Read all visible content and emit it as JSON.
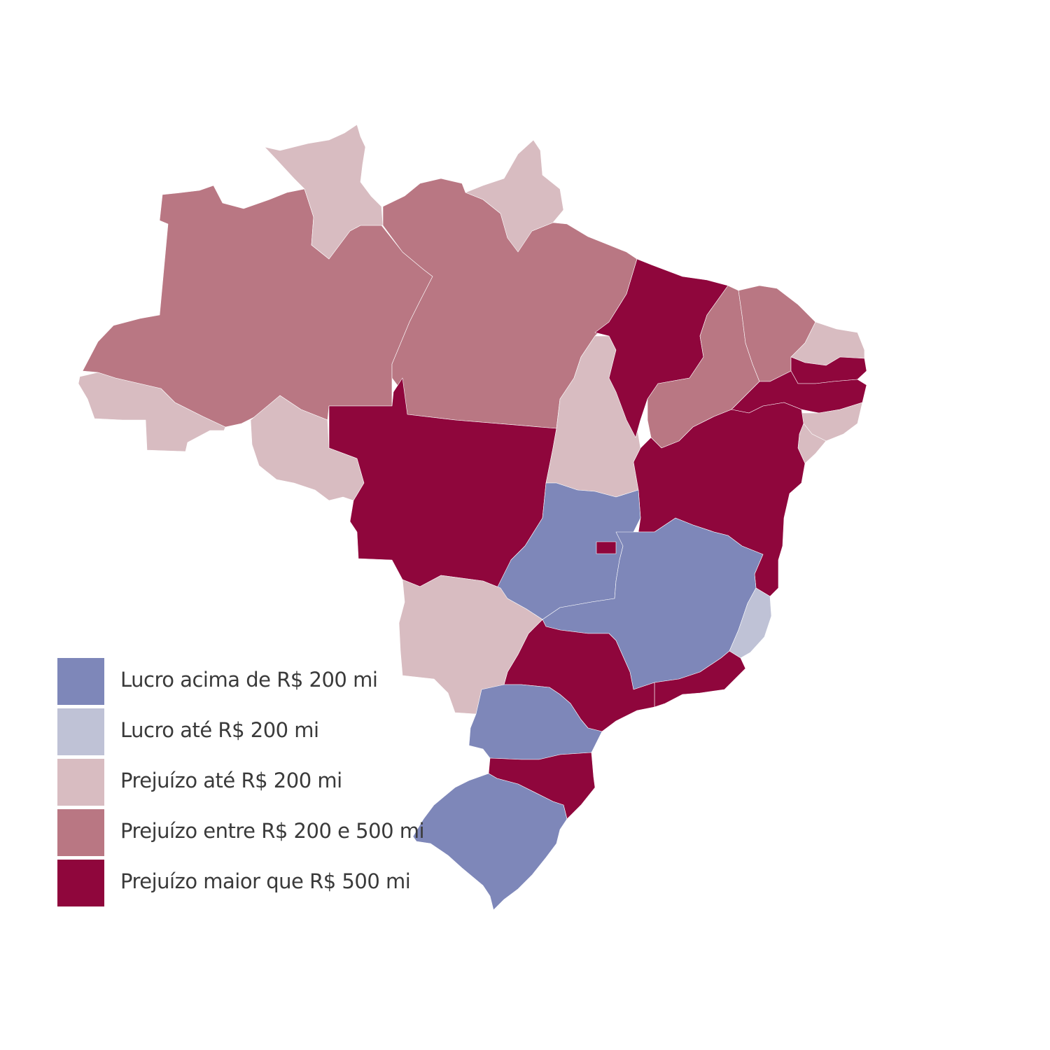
{
  "palette": {
    "lucro_acima": "#7e87b9",
    "lucro_ate": "#bfc2d6",
    "prejuizo_ate": "#d8bcc1",
    "prejuizo_entre": "#b97783",
    "prejuizo_maior": "#8f063c"
  },
  "legend": [
    {
      "key": "lucro_acima",
      "label": "Lucro acima de R$ 200 mi"
    },
    {
      "key": "lucro_ate",
      "label": "Lucro até R$ 200 mi"
    },
    {
      "key": "prejuizo_ate",
      "label": "Prejuízo até R$ 200 mi"
    },
    {
      "key": "prejuizo_entre",
      "label": "Prejuízo entre R$ 200 e 500 mi"
    },
    {
      "key": "prejuizo_maior",
      "label": "Prejuízo maior que R$ 500 mi"
    }
  ],
  "states": [
    {
      "id": "AC",
      "category": "prejuizo_ate"
    },
    {
      "id": "AM",
      "category": "prejuizo_entre"
    },
    {
      "id": "RR",
      "category": "prejuizo_ate"
    },
    {
      "id": "PA",
      "category": "prejuizo_entre"
    },
    {
      "id": "AP",
      "category": "prejuizo_ate"
    },
    {
      "id": "RO",
      "category": "prejuizo_ate"
    },
    {
      "id": "MT",
      "category": "prejuizo_maior"
    },
    {
      "id": "TO",
      "category": "prejuizo_ate"
    },
    {
      "id": "MA",
      "category": "prejuizo_maior"
    },
    {
      "id": "PI",
      "category": "prejuizo_entre"
    },
    {
      "id": "CE",
      "category": "prejuizo_entre"
    },
    {
      "id": "RN",
      "category": "prejuizo_ate"
    },
    {
      "id": "PB",
      "category": "prejuizo_maior"
    },
    {
      "id": "PE",
      "category": "prejuizo_maior"
    },
    {
      "id": "AL",
      "category": "prejuizo_ate"
    },
    {
      "id": "SE",
      "category": "prejuizo_ate"
    },
    {
      "id": "BA",
      "category": "prejuizo_maior"
    },
    {
      "id": "GO",
      "category": "lucro_acima"
    },
    {
      "id": "DF",
      "category": "prejuizo_maior"
    },
    {
      "id": "MG",
      "category": "lucro_acima"
    },
    {
      "id": "ES",
      "category": "lucro_ate"
    },
    {
      "id": "RJ",
      "category": "prejuizo_maior"
    },
    {
      "id": "SP",
      "category": "prejuizo_maior"
    },
    {
      "id": "MS",
      "category": "prejuizo_ate"
    },
    {
      "id": "PR",
      "category": "lucro_acima"
    },
    {
      "id": "SC",
      "category": "prejuizo_maior"
    },
    {
      "id": "RS",
      "category": "lucro_acima"
    }
  ]
}
